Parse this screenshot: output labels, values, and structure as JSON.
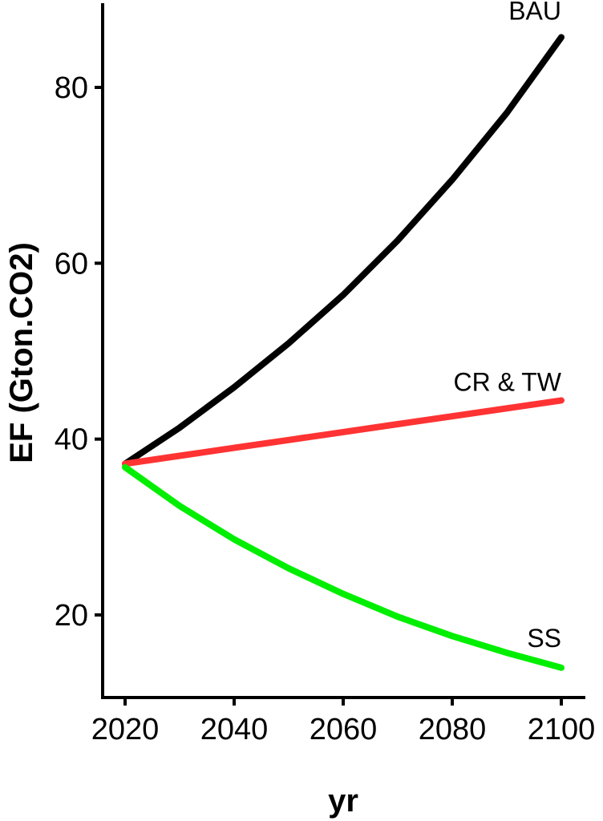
{
  "chart_data": {
    "type": "line",
    "xlabel": "yr",
    "ylabel": "EF (Gton.CO2)",
    "xlim": [
      2015,
      2105
    ],
    "ylim": [
      12,
      89
    ],
    "xticks": [
      2020,
      2040,
      2060,
      2080,
      2100
    ],
    "yticks": [
      20,
      40,
      60,
      80
    ],
    "xtick_labels": [
      "2020",
      "2040",
      "2060",
      "2080",
      "2100"
    ],
    "ytick_labels": [
      "20",
      "40",
      "60",
      "80"
    ],
    "grid": false,
    "legend": "none",
    "x": [
      2020,
      2030,
      2040,
      2050,
      2060,
      2070,
      2080,
      2090,
      2100
    ],
    "series": [
      {
        "name": "BAU",
        "color": "#000000",
        "values": [
          37.2,
          41.3,
          45.9,
          50.9,
          56.4,
          62.6,
          69.5,
          77.1,
          85.7
        ]
      },
      {
        "name": "CR & TW",
        "color": "#ff3333",
        "values": [
          37.2,
          38.1,
          39.0,
          39.9,
          40.8,
          41.7,
          42.6,
          43.5,
          44.4
        ]
      },
      {
        "name": "SS",
        "color": "#00ee00",
        "values": [
          36.8,
          32.4,
          28.6,
          25.3,
          22.4,
          19.8,
          17.6,
          15.7,
          14.0
        ]
      }
    ]
  }
}
